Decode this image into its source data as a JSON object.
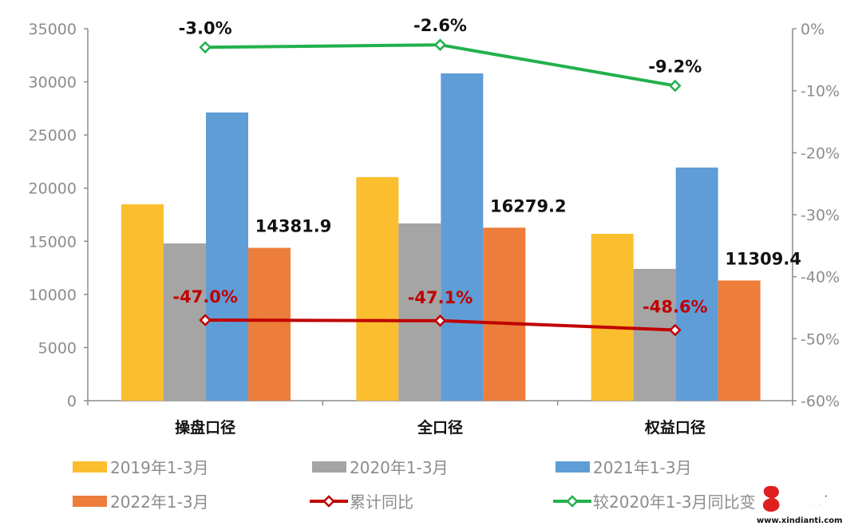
{
  "chart_data": {
    "type": "bar",
    "categories": [
      "操盘口径",
      "全口径",
      "权益口径"
    ],
    "series": [
      {
        "name": "2019年1-3月",
        "kind": "bar",
        "axis": "left",
        "color": "#FBBE2E",
        "values": [
          18480,
          21040,
          15700
        ]
      },
      {
        "name": "2020年1-3月",
        "kind": "bar",
        "axis": "left",
        "color": "#A5A5A5",
        "values": [
          14800,
          16680,
          12400
        ]
      },
      {
        "name": "2021年1-3月",
        "kind": "bar",
        "axis": "left",
        "color": "#5F9DD6",
        "values": [
          27120,
          30800,
          21940
        ]
      },
      {
        "name": "2022年1-3月",
        "kind": "bar",
        "axis": "left",
        "color": "#EC7D3A",
        "values": [
          14381.9,
          16279.2,
          11309.4
        ],
        "labels": [
          "14381.9",
          "16279.2",
          "11309.4"
        ]
      },
      {
        "name": "累计同比",
        "kind": "line",
        "axis": "right",
        "color": "#C00000",
        "values": [
          -47.0,
          -47.1,
          -48.6
        ],
        "labels": [
          "-47.0%",
          "-47.1%",
          "-48.6%"
        ]
      },
      {
        "name": "较2020年1-3月同比变",
        "kind": "line",
        "axis": "right",
        "color": "#22B14C",
        "values": [
          -3.0,
          -2.6,
          -9.2
        ],
        "labels": [
          "-3.0%",
          "-2.6%",
          "-9.2%"
        ]
      }
    ],
    "ylim": [
      0,
      35000
    ],
    "yticks": [
      "0",
      "5000",
      "10000",
      "15000",
      "20000",
      "25000",
      "30000",
      "35000"
    ],
    "y2lim": [
      -60,
      0
    ],
    "y2ticks": [
      "-60%",
      "-50%",
      "-40%",
      "-30%",
      "-20%",
      "-10%",
      "0%"
    ],
    "grid": false,
    "legend": "bottom"
  },
  "watermark": {
    "text": "新电梯",
    "url_text": "www.xindianti.com"
  }
}
